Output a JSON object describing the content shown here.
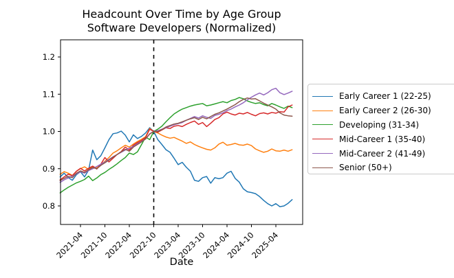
{
  "chart_data": {
    "type": "line",
    "title": "Headcount Over Time by Age Group",
    "subtitle": "Software Developers (Normalized)",
    "xlabel": "Date",
    "ylabel": "",
    "grid": false,
    "legend_position": "outside-right",
    "vline_x": "2022-10",
    "vline_style": "dashed",
    "ylim": [
      0.75,
      1.246
    ],
    "y_ticks": [
      0.8,
      0.9,
      1.0,
      1.1,
      1.2
    ],
    "x_tick_labels": [
      "2021-04",
      "2021-10",
      "2022-04",
      "2022-10",
      "2023-04",
      "2023-10",
      "2024-04",
      "2024-10",
      "2025-04"
    ],
    "x": [
      "2020-11",
      "2020-12",
      "2021-01",
      "2021-02",
      "2021-03",
      "2021-04",
      "2021-05",
      "2021-06",
      "2021-07",
      "2021-08",
      "2021-09",
      "2021-10",
      "2021-11",
      "2021-12",
      "2022-01",
      "2022-02",
      "2022-03",
      "2022-04",
      "2022-05",
      "2022-06",
      "2022-07",
      "2022-08",
      "2022-09",
      "2022-10",
      "2022-11",
      "2022-12",
      "2023-01",
      "2023-02",
      "2023-03",
      "2023-04",
      "2023-05",
      "2023-06",
      "2023-07",
      "2023-08",
      "2023-09",
      "2023-10",
      "2023-11",
      "2023-12",
      "2024-01",
      "2024-02",
      "2024-03",
      "2024-04",
      "2024-05",
      "2024-06",
      "2024-07",
      "2024-08",
      "2024-09",
      "2024-10",
      "2024-11",
      "2024-12",
      "2025-01",
      "2025-02",
      "2025-03",
      "2025-04",
      "2025-05",
      "2025-06",
      "2025-07",
      "2025-08"
    ],
    "series": [
      {
        "name": "Early Career 1 (22-25)",
        "color": "#1f77b4",
        "values": [
          0.878,
          0.888,
          0.876,
          0.869,
          0.884,
          0.892,
          0.878,
          0.896,
          0.95,
          0.924,
          0.935,
          0.956,
          0.978,
          0.994,
          0.996,
          1.001,
          0.99,
          0.972,
          0.991,
          0.981,
          0.987,
          0.996,
          1.01,
          1.0,
          0.978,
          0.965,
          0.951,
          0.944,
          0.928,
          0.911,
          0.917,
          0.904,
          0.893,
          0.869,
          0.866,
          0.876,
          0.879,
          0.861,
          0.876,
          0.873,
          0.876,
          0.888,
          0.893,
          0.874,
          0.864,
          0.846,
          0.838,
          0.836,
          0.833,
          0.825,
          0.815,
          0.806,
          0.8,
          0.806,
          0.798,
          0.8,
          0.807,
          0.817
        ]
      },
      {
        "name": "Early Career 2 (26-30)",
        "color": "#ff7f0e",
        "values": [
          0.885,
          0.892,
          0.888,
          0.882,
          0.893,
          0.9,
          0.905,
          0.898,
          0.906,
          0.902,
          0.91,
          0.92,
          0.93,
          0.942,
          0.948,
          0.956,
          0.963,
          0.958,
          0.966,
          0.973,
          0.979,
          0.986,
          1.008,
          1.0,
          0.996,
          0.99,
          0.985,
          0.982,
          0.984,
          0.979,
          0.974,
          0.968,
          0.972,
          0.965,
          0.96,
          0.956,
          0.952,
          0.95,
          0.956,
          0.966,
          0.971,
          0.963,
          0.965,
          0.968,
          0.964,
          0.963,
          0.966,
          0.962,
          0.953,
          0.948,
          0.944,
          0.947,
          0.953,
          0.948,
          0.947,
          0.95,
          0.947,
          0.951
        ]
      },
      {
        "name": "Developing (31-34)",
        "color": "#2ca02c",
        "values": [
          0.835,
          0.843,
          0.85,
          0.856,
          0.862,
          0.866,
          0.871,
          0.88,
          0.868,
          0.875,
          0.884,
          0.89,
          0.898,
          0.905,
          0.913,
          0.922,
          0.93,
          0.942,
          0.938,
          0.945,
          0.965,
          0.985,
          0.978,
          1.0,
          1.006,
          1.014,
          1.026,
          1.037,
          1.047,
          1.054,
          1.06,
          1.064,
          1.068,
          1.071,
          1.073,
          1.075,
          1.069,
          1.071,
          1.074,
          1.077,
          1.08,
          1.077,
          1.083,
          1.086,
          1.091,
          1.088,
          1.082,
          1.078,
          1.075,
          1.077,
          1.072,
          1.069,
          1.075,
          1.071,
          1.066,
          1.062,
          1.068,
          1.064
        ]
      },
      {
        "name": "Mid-Career 1 (35-40)",
        "color": "#d62728",
        "values": [
          0.87,
          0.878,
          0.885,
          0.881,
          0.893,
          0.901,
          0.894,
          0.901,
          0.907,
          0.899,
          0.912,
          0.93,
          0.918,
          0.928,
          0.938,
          0.946,
          0.958,
          0.95,
          0.963,
          0.97,
          0.976,
          0.984,
          1.006,
          1.0,
          0.998,
          1.004,
          1.01,
          1.008,
          1.014,
          1.016,
          1.013,
          1.019,
          1.024,
          1.028,
          1.019,
          1.024,
          1.013,
          1.022,
          1.032,
          1.037,
          1.047,
          1.052,
          1.047,
          1.044,
          1.049,
          1.047,
          1.051,
          1.046,
          1.042,
          1.048,
          1.05,
          1.047,
          1.051,
          1.049,
          1.053,
          1.052,
          1.066,
          1.071
        ]
      },
      {
        "name": "Mid-Career 2 (41-49)",
        "color": "#9467bd",
        "values": [
          0.863,
          0.87,
          0.875,
          0.88,
          0.886,
          0.892,
          0.888,
          0.895,
          0.9,
          0.906,
          0.912,
          0.918,
          0.925,
          0.932,
          0.938,
          0.944,
          0.95,
          0.955,
          0.96,
          0.967,
          0.973,
          0.98,
          0.994,
          1.0,
          1.002,
          1.006,
          1.01,
          1.014,
          1.018,
          1.021,
          1.024,
          1.03,
          1.035,
          1.04,
          1.036,
          1.042,
          1.038,
          1.035,
          1.043,
          1.046,
          1.05,
          1.056,
          1.06,
          1.066,
          1.071,
          1.077,
          1.085,
          1.092,
          1.098,
          1.103,
          1.098,
          1.104,
          1.112,
          1.116,
          1.104,
          1.099,
          1.103,
          1.108
        ]
      },
      {
        "name": "Senior (50+)",
        "color": "#8c564b",
        "values": [
          0.868,
          0.874,
          0.879,
          0.876,
          0.888,
          0.894,
          0.89,
          0.897,
          0.903,
          0.9,
          0.909,
          0.916,
          0.923,
          0.931,
          0.938,
          0.945,
          0.952,
          0.947,
          0.958,
          0.965,
          0.972,
          0.98,
          0.993,
          1.0,
          1.0,
          1.005,
          1.012,
          1.016,
          1.02,
          1.022,
          1.026,
          1.03,
          1.034,
          1.037,
          1.032,
          1.038,
          1.034,
          1.04,
          1.046,
          1.05,
          1.055,
          1.06,
          1.066,
          1.072,
          1.08,
          1.086,
          1.09,
          1.087,
          1.088,
          1.082,
          1.076,
          1.071,
          1.066,
          1.06,
          1.05,
          1.044,
          1.042,
          1.041
        ]
      }
    ]
  }
}
